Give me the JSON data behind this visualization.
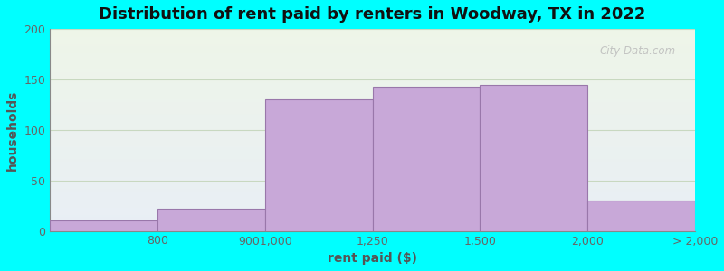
{
  "title": "Distribution of rent paid by renters in Woodway, TX in 2022",
  "xlabel": "rent paid ($)",
  "ylabel": "households",
  "bin_edges": [
    0,
    1,
    2,
    3,
    4,
    5,
    6
  ],
  "bar_heights": [
    10,
    22,
    130,
    143,
    145,
    30
  ],
  "tick_positions": [
    0,
    1,
    2,
    3,
    4,
    5,
    6
  ],
  "tick_labels": [
    "",
    "800",
    "9001,000",
    "1,250",
    "1,500",
    "2,000",
    "> 2,000"
  ],
  "bar_color": "#c8a8d8",
  "bar_edgecolor": "#9977aa",
  "ylim": [
    0,
    200
  ],
  "yticks": [
    0,
    50,
    100,
    150,
    200
  ],
  "background_color": "#00ffff",
  "plot_bg_top": "#eef5e8",
  "plot_bg_bottom": "#e8eef5",
  "title_fontsize": 13,
  "axis_label_fontsize": 10,
  "tick_fontsize": 9,
  "watermark": "City-Data.com",
  "grid_color": "#c8d8c0",
  "spine_color": "#888888"
}
